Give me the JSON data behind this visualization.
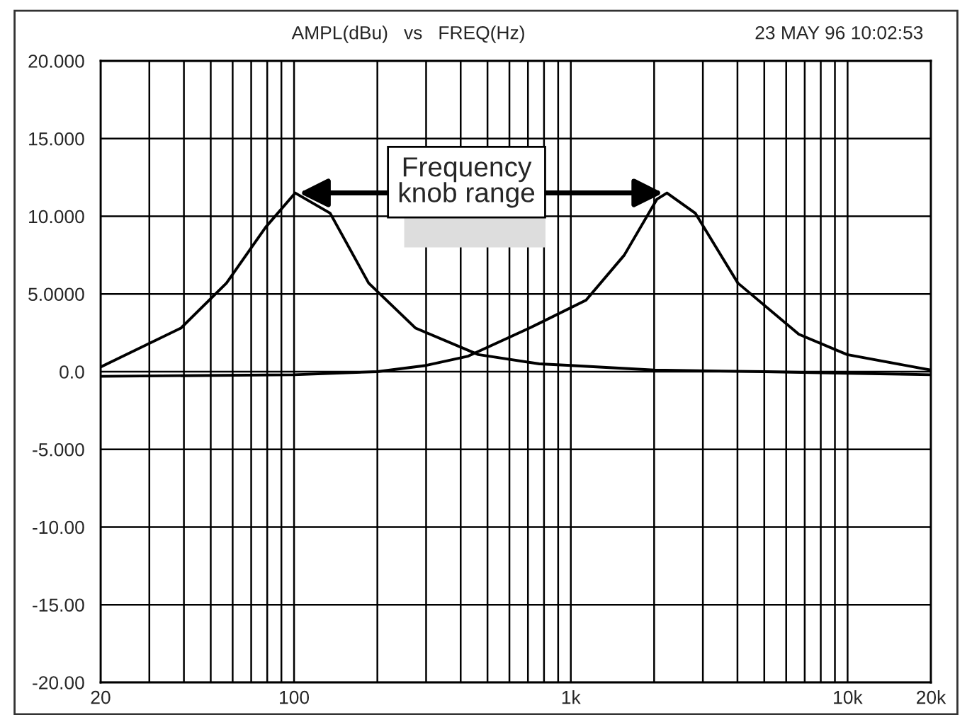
{
  "chart_data": {
    "type": "line",
    "title": "AMPL(dBu)   vs   FREQ(Hz)",
    "annotations": [
      "23 MAY 96 10:02:53",
      {
        "text": "Frequency\nknob range",
        "x": 101,
        "y": 11.5
      }
    ],
    "log": "x",
    "grid": true,
    "line_style": "solid",
    "marker": "none",
    "xlim": [
      20,
      20000
    ],
    "ylim": [
      -20,
      20
    ],
    "xticks": [
      {
        "value": 20,
        "label": "20"
      },
      {
        "value": 30,
        "label": null
      },
      {
        "value": 40,
        "label": null
      },
      {
        "value": 50,
        "label": null
      },
      {
        "value": 60,
        "label": null
      },
      {
        "value": 70,
        "label": null
      },
      {
        "value": 80,
        "label": null
      },
      {
        "value": 90,
        "label": null
      },
      {
        "value": 100,
        "label": "100"
      },
      {
        "value": 200,
        "label": null
      },
      {
        "value": 300,
        "label": null
      },
      {
        "value": 400,
        "label": null
      },
      {
        "value": 500,
        "label": null
      },
      {
        "value": 600,
        "label": null
      },
      {
        "value": 700,
        "label": null
      },
      {
        "value": 800,
        "label": null
      },
      {
        "value": 900,
        "label": null
      },
      {
        "value": 1000,
        "label": "1k"
      },
      {
        "value": 2000,
        "label": null
      },
      {
        "value": 3000,
        "label": null
      },
      {
        "value": 4000,
        "label": null
      },
      {
        "value": 5000,
        "label": null
      },
      {
        "value": 6000,
        "label": null
      },
      {
        "value": 7000,
        "label": null
      },
      {
        "value": 8000,
        "label": null
      },
      {
        "value": 9000,
        "label": null
      },
      {
        "value": 10000,
        "label": "10k"
      },
      {
        "value": 20000,
        "label": "20k"
      }
    ],
    "yticks": [
      {
        "value": 20,
        "label": "20.000"
      },
      {
        "value": 15,
        "label": "15.000"
      },
      {
        "value": 10,
        "label": "10.000"
      },
      {
        "value": 5,
        "label": "5.0000"
      },
      {
        "value": 0,
        "label": "0.0"
      },
      {
        "value": -5,
        "label": "-5.000"
      },
      {
        "value": -10,
        "label": "-10.00"
      },
      {
        "value": -15,
        "label": "-15.00"
      },
      {
        "value": -20,
        "label": "-20.00"
      }
    ],
    "series": [
      {
        "color": "#000000",
        "x": [
          20,
          39,
          57,
          79,
          101,
          135,
          186,
          275,
          463,
          770,
          1000,
          2000,
          5000,
          10000,
          20000
        ],
        "values": [
          0.3,
          2.8,
          5.7,
          9.3,
          11.5,
          10.2,
          5.7,
          2.8,
          1.1,
          0.5,
          0.4,
          0.1,
          0.0,
          -0.1,
          -0.2
        ]
      },
      {
        "color": "#000000",
        "x": [
          20,
          100,
          200,
          300,
          426,
          708,
          1135,
          1560,
          2048,
          2225,
          2816,
          4015,
          6670,
          9960,
          20000
        ],
        "values": [
          -0.3,
          -0.2,
          0.0,
          0.4,
          1.0,
          2.8,
          4.6,
          7.5,
          11.1,
          11.5,
          10.2,
          5.7,
          2.4,
          1.1,
          0.1
        ]
      }
    ]
  }
}
